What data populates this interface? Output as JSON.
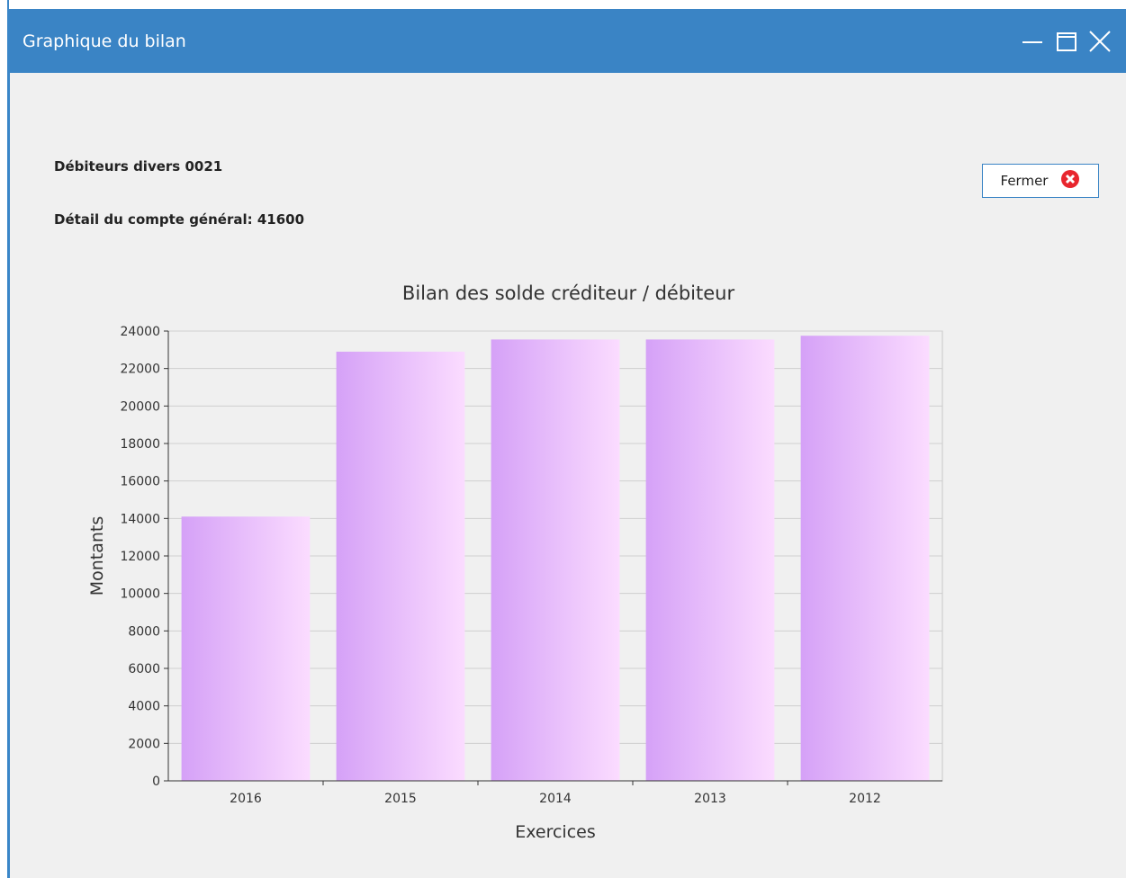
{
  "window": {
    "title": "Graphique du bilan",
    "minimize_icon": "minimize-icon",
    "maximize_icon": "maximize-icon",
    "close_icon": "close-icon"
  },
  "header": {
    "line1": "Débiteurs divers 0021",
    "line2": "Détail du compte général: 41600"
  },
  "close_button": {
    "label": "Fermer",
    "icon": "close-circle-icon",
    "icon_color": "#e8262e"
  },
  "colors": {
    "titlebar": "#3a84c5",
    "bar_left": "#d5a1f7",
    "bar_right": "#fbdcff"
  },
  "chart_data": {
    "type": "bar",
    "title": "Bilan des solde créditeur / débiteur",
    "xlabel": "Exercices",
    "ylabel": "Montants",
    "categories": [
      "2016",
      "2015",
      "2014",
      "2013",
      "2012"
    ],
    "values": [
      14100,
      22900,
      23550,
      23550,
      23750
    ],
    "ylim": [
      0,
      24000
    ],
    "yticks": [
      "0",
      "2000",
      "4000",
      "6000",
      "8000",
      "10000",
      "12000",
      "14000",
      "16000",
      "18000",
      "20000",
      "22000",
      "24000"
    ],
    "grid": true,
    "legend": "none"
  }
}
